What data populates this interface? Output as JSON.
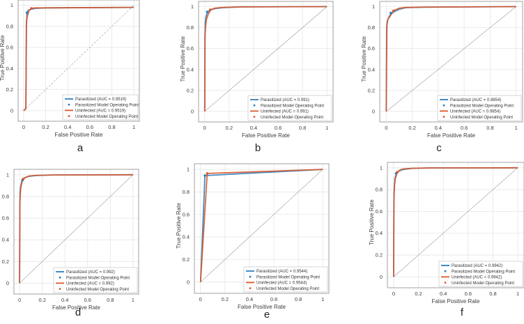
{
  "colors": {
    "parasitized": "#2f7ec0",
    "uninfected": "#d9582b",
    "diagonal": "#9a9a9a",
    "grid": "#e6e6e6",
    "axis": "#8a8a8a",
    "tick_text": "#3c3c3c"
  },
  "chart_data": [
    {
      "panel": "a",
      "type": "line",
      "xlabel": "False Positive Rate",
      "ylabel": "True Positive Rate",
      "xlim": [
        -0.05,
        1.05
      ],
      "ylim": [
        -0.1,
        1.05
      ],
      "xticks": [
        "0",
        "0.2",
        "0.4",
        "0.6",
        "0.8",
        "1"
      ],
      "yticks": [
        "0",
        "0.2",
        "0.4",
        "0.6",
        "0.8",
        "1"
      ],
      "grid": true,
      "diagonal_style": "dashed",
      "legend_position": "bottom-right",
      "legend": [
        "Parasitized (AUC = 0.9519)",
        "Parasitized Model Operating Point",
        "Uninfected (AUC = 0.9519)",
        "Uninfected Model Operating Point"
      ],
      "series": [
        {
          "name": "Parasitized",
          "auc": 0.9519,
          "x": [
            0,
            0.02,
            0.025,
            0.03,
            0.04,
            0.06,
            0.1,
            0.2,
            1
          ],
          "y": [
            0,
            0.02,
            0.8,
            0.92,
            0.95,
            0.96,
            0.97,
            0.975,
            0.98
          ],
          "operating_point": [
            0.03,
            0.93
          ]
        },
        {
          "name": "Uninfected",
          "auc": 0.9519,
          "x": [
            0,
            0.02,
            0.025,
            0.035,
            0.05,
            0.07,
            0.1,
            0.2,
            1
          ],
          "y": [
            0,
            0.02,
            0.85,
            0.9,
            0.95,
            0.97,
            0.975,
            0.975,
            0.98
          ],
          "operating_point": [
            0.07,
            0.97
          ]
        }
      ]
    },
    {
      "panel": "b",
      "type": "line",
      "xlabel": "False Positive Rate",
      "ylabel": "True Positive Rate",
      "xlim": [
        -0.05,
        1.05
      ],
      "ylim": [
        -0.1,
        1.05
      ],
      "xticks": [
        "0",
        "0.2",
        "0.4",
        "0.6",
        "0.8",
        "1"
      ],
      "yticks": [
        "0",
        "0.2",
        "0.4",
        "0.6",
        "0.8",
        "1"
      ],
      "grid": true,
      "diagonal_style": "solid",
      "legend_position": "bottom-right",
      "legend": [
        "Parasitized (AUC = 0.991)",
        "Parasitized Model Operating Point",
        "Uninfected (AUC = 0.991)",
        "Uninfected Model Operating Point"
      ],
      "series": [
        {
          "name": "Parasitized",
          "auc": 0.991,
          "x": [
            0,
            0.002,
            0.005,
            0.01,
            0.02,
            0.04,
            0.08,
            0.15,
            0.3,
            1
          ],
          "y": [
            0,
            0.7,
            0.85,
            0.9,
            0.94,
            0.965,
            0.98,
            0.99,
            0.998,
            1
          ],
          "operating_point": [
            0.02,
            0.95
          ]
        },
        {
          "name": "Uninfected",
          "auc": 0.991,
          "x": [
            0,
            0.003,
            0.008,
            0.015,
            0.03,
            0.05,
            0.08,
            0.15,
            0.3,
            1
          ],
          "y": [
            0,
            0.72,
            0.82,
            0.88,
            0.93,
            0.97,
            0.985,
            0.993,
            0.998,
            1
          ],
          "operating_point": [
            0.045,
            0.97
          ]
        }
      ]
    },
    {
      "panel": "c",
      "type": "line",
      "xlabel": "False Positive Rate",
      "ylabel": "True Positive Rate",
      "xlim": [
        -0.05,
        1.05
      ],
      "ylim": [
        -0.1,
        1.05
      ],
      "xticks": [
        "0",
        "0.2",
        "0.4",
        "0.6",
        "0.8",
        "1"
      ],
      "yticks": [
        "0",
        "0.2",
        "0.4",
        "0.6",
        "0.8",
        "1"
      ],
      "grid": true,
      "diagonal_style": "solid",
      "legend_position": "bottom-right",
      "legend": [
        "Parasitized (AUC = 0.9854)",
        "Parasitized Model Operating Point",
        "Uninfected (AUC = 0.9854)",
        "Uninfected Model Operating Point"
      ],
      "series": [
        {
          "name": "Parasitized",
          "auc": 0.9854,
          "x": [
            0,
            0.003,
            0.008,
            0.02,
            0.035,
            0.06,
            0.1,
            0.15,
            0.3,
            1
          ],
          "y": [
            0,
            0.8,
            0.86,
            0.9,
            0.93,
            0.95,
            0.975,
            0.99,
            0.995,
            1
          ],
          "operating_point": [
            0.035,
            0.94
          ]
        },
        {
          "name": "Uninfected",
          "auc": 0.9854,
          "x": [
            0,
            0.005,
            0.012,
            0.025,
            0.04,
            0.06,
            0.1,
            0.15,
            0.3,
            1
          ],
          "y": [
            0,
            0.82,
            0.88,
            0.9,
            0.93,
            0.965,
            0.985,
            0.992,
            0.996,
            1
          ],
          "operating_point": [
            0.055,
            0.96
          ]
        }
      ]
    },
    {
      "panel": "d",
      "type": "line",
      "xlabel": "False Positive Rate",
      "ylabel": "True Positive Rate",
      "xlim": [
        -0.05,
        1.05
      ],
      "ylim": [
        -0.1,
        1.05
      ],
      "xticks": [
        "0",
        "0.2",
        "0.4",
        "0.6",
        "0.8",
        "1"
      ],
      "yticks": [
        "0",
        "0.2",
        "0.4",
        "0.6",
        "0.8",
        "1"
      ],
      "grid": true,
      "diagonal_style": "solid",
      "legend_position": "bottom-right",
      "legend": [
        "Parasitized (AUC = 0.992)",
        "Parasitized Model Operating Point",
        "Uninfected (AUC = 0.992)",
        "Uninfected Model Operating Point"
      ],
      "series": [
        {
          "name": "Parasitized",
          "auc": 0.992,
          "x": [
            0,
            0.002,
            0.005,
            0.01,
            0.02,
            0.04,
            0.08,
            0.15,
            0.3,
            1
          ],
          "y": [
            0,
            0.72,
            0.85,
            0.9,
            0.94,
            0.97,
            0.985,
            0.993,
            0.998,
            1
          ],
          "operating_point": [
            0.025,
            0.95
          ]
        },
        {
          "name": "Uninfected",
          "auc": 0.992,
          "x": [
            0,
            0.003,
            0.007,
            0.014,
            0.025,
            0.045,
            0.08,
            0.15,
            0.3,
            1
          ],
          "y": [
            0,
            0.74,
            0.84,
            0.9,
            0.94,
            0.972,
            0.988,
            0.995,
            0.998,
            1
          ],
          "operating_point": [
            0.03,
            0.96
          ]
        }
      ]
    },
    {
      "panel": "e",
      "type": "line",
      "xlabel": "False Positive Rate",
      "ylabel": "True Positive Rate",
      "xlim": [
        -0.05,
        1.05
      ],
      "ylim": [
        -0.1,
        1.05
      ],
      "xticks": [
        "0",
        "0.2",
        "0.4",
        "0.6",
        "0.8",
        "1"
      ],
      "yticks": [
        "0",
        "0.2",
        "0.4",
        "0.6",
        "0.8",
        "1"
      ],
      "grid": true,
      "diagonal_style": "solid",
      "legend_position": "bottom-right",
      "legend": [
        "Parasitized (AUC = 0.9544)",
        "Parasitized Model Operating Point",
        "Uninfected (AUC = 0.9544)",
        "Uninfected Model Operating Point"
      ],
      "series": [
        {
          "name": "Parasitized",
          "auc": 0.9544,
          "x": [
            0,
            0.036,
            1
          ],
          "y": [
            0,
            0.945,
            1
          ],
          "operating_point": [
            0.036,
            0.945
          ]
        },
        {
          "name": "Uninfected",
          "auc": 0.9544,
          "x": [
            0,
            0.055,
            1
          ],
          "y": [
            0,
            0.964,
            1
          ],
          "operating_point": [
            0.055,
            0.964
          ]
        }
      ]
    },
    {
      "panel": "f",
      "type": "line",
      "xlabel": "False Positive Rate",
      "ylabel": "True Positive Rate",
      "xlim": [
        -0.05,
        1.05
      ],
      "ylim": [
        -0.1,
        1.05
      ],
      "xticks": [
        "0",
        "0.2",
        "0.4",
        "0.6",
        "0.8",
        "1"
      ],
      "yticks": [
        "0",
        "0.2",
        "0.4",
        "0.6",
        "0.8",
        "1"
      ],
      "grid": true,
      "diagonal_style": "solid",
      "legend_position": "bottom-right",
      "legend": [
        "Parasitized (AUC = 0.9942)",
        "Parasitized Model Operating Point",
        "Uninfected (AUC = 0.9942)",
        "Uninfected Model Operating Point"
      ],
      "series": [
        {
          "name": "Parasitized",
          "auc": 0.9942,
          "x": [
            0,
            0.002,
            0.005,
            0.01,
            0.02,
            0.04,
            0.08,
            0.15,
            0.3,
            1
          ],
          "y": [
            0,
            0.7,
            0.82,
            0.9,
            0.94,
            0.97,
            0.985,
            0.995,
            0.999,
            1
          ],
          "operating_point": [
            0.02,
            0.95
          ]
        },
        {
          "name": "Uninfected",
          "auc": 0.9942,
          "x": [
            0,
            0.003,
            0.007,
            0.014,
            0.028,
            0.05,
            0.08,
            0.15,
            0.3,
            1
          ],
          "y": [
            0,
            0.72,
            0.84,
            0.9,
            0.955,
            0.98,
            0.99,
            0.996,
            0.999,
            1
          ],
          "operating_point": [
            0.03,
            0.96
          ]
        }
      ]
    }
  ],
  "panel_labels": [
    "a",
    "b",
    "c",
    "d",
    "e",
    "f"
  ]
}
